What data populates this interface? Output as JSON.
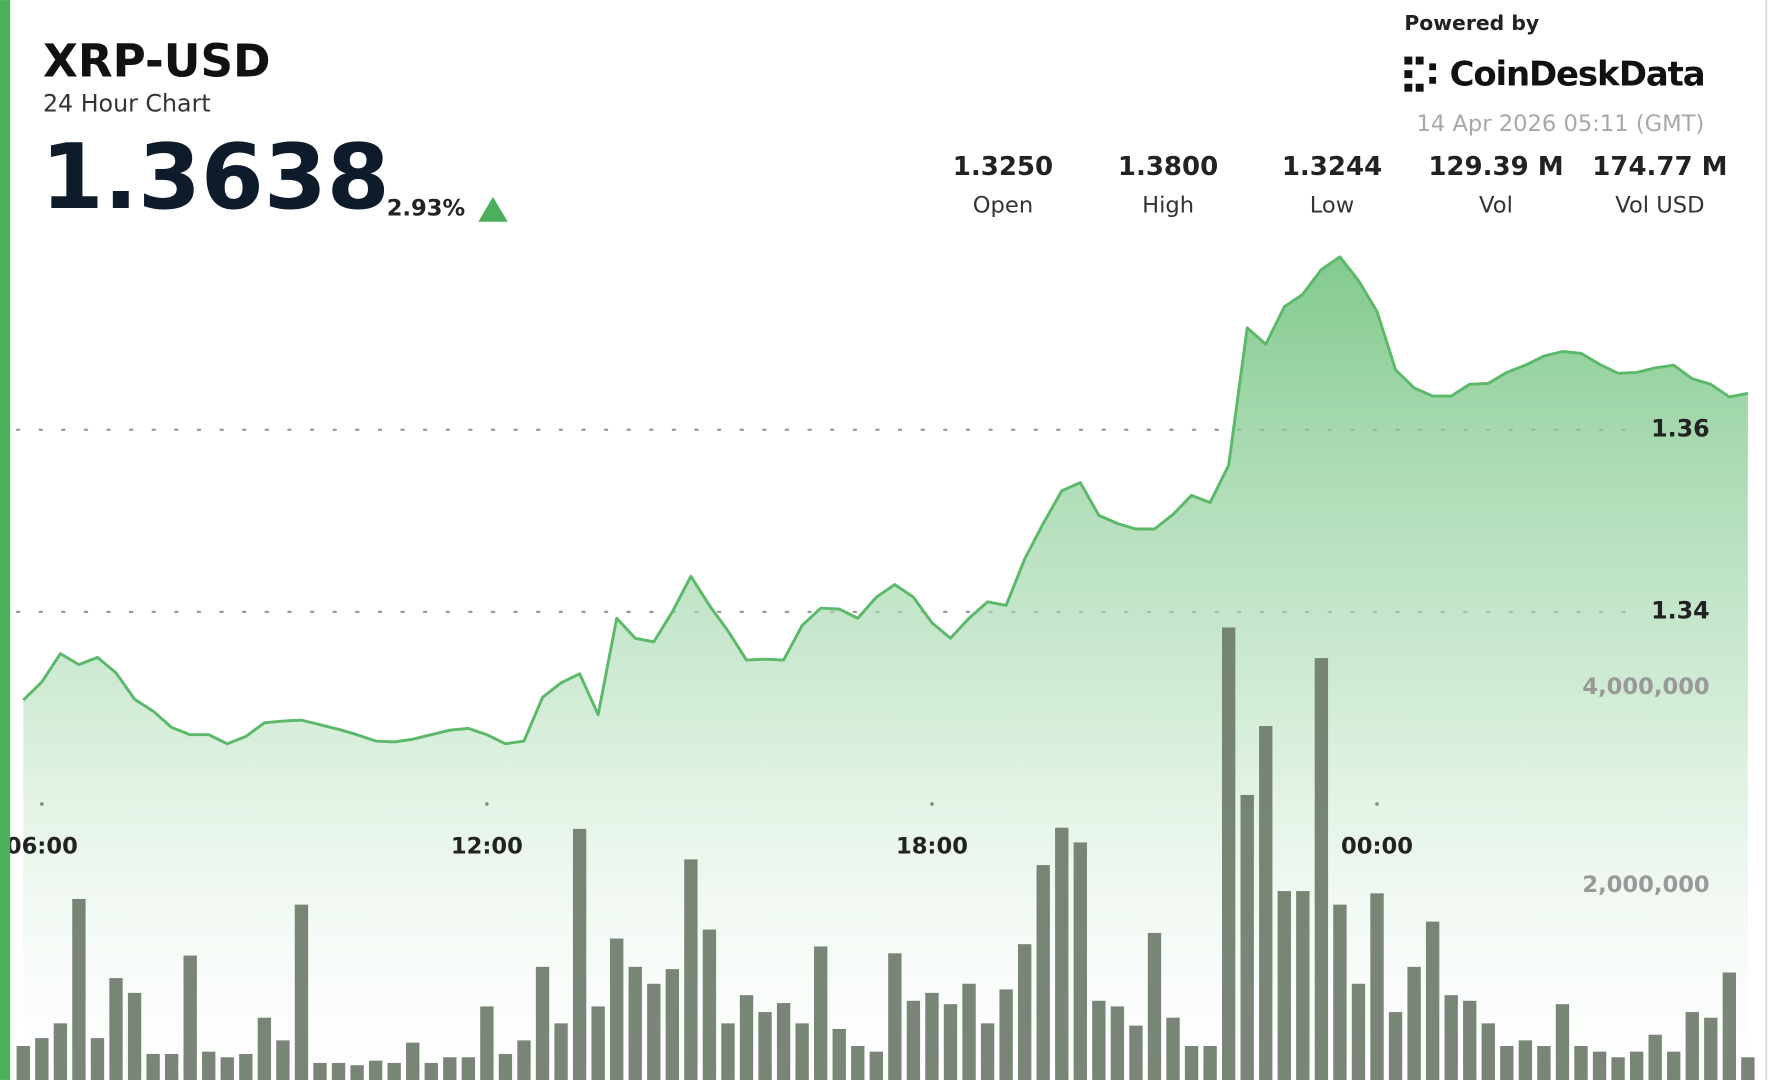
{
  "chart_data": {
    "type": "line",
    "title": "XRP-USD",
    "subtitle": "24 Hour Chart",
    "price": "1.3638",
    "change": "2.93%",
    "powered_by": "Powered by",
    "brand": "CoinDesk Data",
    "timestamp": "14 Apr 2026 05:11 (GMT)",
    "stats": [
      {
        "value": "1.3250",
        "label": "Open"
      },
      {
        "value": "1.3800",
        "label": "High"
      },
      {
        "value": "1.3244",
        "label": "Low"
      },
      {
        "value": "129.39 M",
        "label": "Vol"
      },
      {
        "value": "174.77 M",
        "label": "Vol USD"
      }
    ],
    "x": [
      "05:45",
      "06:00",
      "06:15",
      "06:30",
      "06:45",
      "07:00",
      "07:15",
      "07:30",
      "07:45",
      "08:00",
      "08:15",
      "08:30",
      "08:45",
      "09:00",
      "09:15",
      "09:30",
      "09:45",
      "10:00",
      "10:15",
      "10:30",
      "10:45",
      "11:00",
      "11:15",
      "11:30",
      "11:45",
      "12:00",
      "12:15",
      "12:30",
      "12:45",
      "13:00",
      "13:15",
      "13:30",
      "13:45",
      "14:00",
      "14:15",
      "14:30",
      "14:45",
      "15:00",
      "15:15",
      "15:30",
      "15:45",
      "16:00",
      "16:15",
      "16:30",
      "16:45",
      "17:00",
      "17:15",
      "17:30",
      "17:45",
      "18:00",
      "18:15",
      "18:30",
      "18:45",
      "19:00",
      "19:15",
      "19:30",
      "19:45",
      "20:00",
      "20:15",
      "20:30",
      "20:45",
      "21:00",
      "21:15",
      "21:30",
      "21:45",
      "22:00",
      "22:15",
      "22:30",
      "22:45",
      "23:00",
      "23:15",
      "23:30",
      "23:45",
      "00:00",
      "00:15",
      "00:30",
      "00:45",
      "01:00",
      "01:15",
      "01:30",
      "01:45",
      "02:00",
      "02:15",
      "02:30",
      "02:45",
      "03:00",
      "03:15",
      "03:30",
      "03:45",
      "04:00",
      "04:15",
      "04:30",
      "04:45",
      "05:00"
    ],
    "xticks": [
      "06:00",
      "12:00",
      "18:00",
      "00:00"
    ],
    "ylim": [
      1.2882,
      1.3805
    ],
    "yticks": [
      1.34,
      1.36
    ],
    "y2lim": [
      0,
      8490000
    ],
    "y2ticks": [
      {
        "value": 2000000,
        "label": "2,000,000"
      },
      {
        "value": 4000000,
        "label": "4,000,000"
      }
    ],
    "grid": true,
    "series": [
      {
        "color": "#5cb96a",
        "values": [
          1.3303,
          1.3323,
          1.3354,
          1.3342,
          1.335,
          1.3333,
          1.3304,
          1.3291,
          1.3273,
          1.3265,
          1.3265,
          1.3255,
          1.3263,
          1.3278,
          1.328,
          1.3281,
          1.3276,
          1.3271,
          1.3265,
          1.3258,
          1.3257,
          1.326,
          1.3265,
          1.327,
          1.3272,
          1.3265,
          1.3255,
          1.3258,
          1.3306,
          1.3322,
          1.3332,
          1.3287,
          1.3393,
          1.3371,
          1.3367,
          1.34,
          1.3439,
          1.3407,
          1.3379,
          1.3347,
          1.3348,
          1.3347,
          1.3385,
          1.3404,
          1.3403,
          1.3393,
          1.3416,
          1.343,
          1.3416,
          1.3388,
          1.3371,
          1.3393,
          1.3411,
          1.3407,
          1.3458,
          1.3497,
          1.3533,
          1.3542,
          1.3506,
          1.3497,
          1.3491,
          1.3491,
          1.3507,
          1.3528,
          1.352,
          1.3561,
          1.3712,
          1.3694,
          1.3735,
          1.3749,
          1.3776,
          1.379,
          1.3764,
          1.373,
          1.3666,
          1.3646,
          1.3637,
          1.3637,
          1.365,
          1.3651,
          1.3663,
          1.3671,
          1.3681,
          1.3686,
          1.3684,
          1.3672,
          1.3662,
          1.3663,
          1.3668,
          1.3671,
          1.3656,
          1.365,
          1.3636,
          1.364
        ]
      },
      {
        "type": "bar",
        "axis": "y2",
        "color": "#6e7b6a",
        "values": [
          377000,
          457000,
          606000,
          1863000,
          457000,
          1063000,
          914000,
          297000,
          297000,
          1291000,
          320000,
          263000,
          297000,
          663000,
          434000,
          1806000,
          206000,
          206000,
          183000,
          229000,
          206000,
          411000,
          206000,
          263000,
          263000,
          777000,
          297000,
          434000,
          1177000,
          606000,
          2571000,
          777000,
          1463000,
          1177000,
          1006000,
          1154000,
          2263000,
          1554000,
          606000,
          891000,
          720000,
          811000,
          606000,
          1383000,
          549000,
          377000,
          320000,
          1314000,
          834000,
          914000,
          800000,
          1006000,
          606000,
          949000,
          1406000,
          2206000,
          2583000,
          2434000,
          834000,
          777000,
          583000,
          1520000,
          663000,
          377000,
          377000,
          4606000,
          2914000,
          3611000,
          1943000,
          1943000,
          4297000,
          1806000,
          1006000,
          1920000,
          720000,
          1177000,
          1634000,
          891000,
          834000,
          606000,
          377000,
          434000,
          377000,
          800000,
          377000,
          320000,
          263000,
          320000,
          491000,
          320000,
          720000,
          663000,
          1120000,
          263000
        ]
      }
    ]
  }
}
